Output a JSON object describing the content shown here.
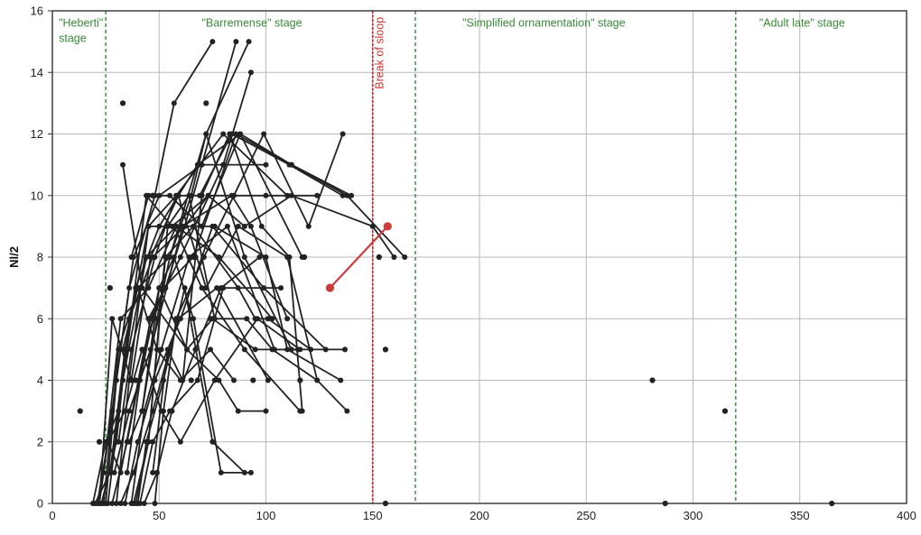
{
  "chart_data": {
    "type": "line",
    "ylabel": "Nl/2",
    "xlabel": "",
    "xlim": [
      0,
      400
    ],
    "ylim": [
      0,
      16
    ],
    "grid": true,
    "x_ticks": [
      0,
      50,
      100,
      150,
      200,
      250,
      300,
      350,
      400
    ],
    "y_ticks": [
      0,
      2,
      4,
      6,
      8,
      10,
      12,
      14,
      16
    ],
    "colors": {
      "series": "#222222",
      "highlight": "#d03a3a",
      "stage_line": "#3a8a3a",
      "break_line": "#c02020",
      "grid": "#b8b8b8",
      "axis": "#333333"
    },
    "stage_boundaries": [
      {
        "x": 25,
        "type": "stage"
      },
      {
        "x": 150,
        "type": "break"
      },
      {
        "x": 170,
        "type": "stage"
      },
      {
        "x": 320,
        "type": "stage"
      }
    ],
    "annotations": [
      {
        "text": "\"Heberti\"",
        "x": 3,
        "y": 15.6,
        "kind": "stage"
      },
      {
        "text": "stage",
        "x": 3,
        "y": 15.1,
        "kind": "stage"
      },
      {
        "text": "\"Barremense\" stage",
        "x": 70,
        "y": 15.6,
        "kind": "stage"
      },
      {
        "text": "\"Simplified ornamentation\" stage",
        "x": 192,
        "y": 15.6,
        "kind": "stage"
      },
      {
        "text": "\"Adult late\" stage",
        "x": 331,
        "y": 15.6,
        "kind": "stage"
      },
      {
        "text": "Break of sloop",
        "x": 155,
        "y": 15.8,
        "kind": "break"
      }
    ],
    "series": [
      {
        "points": [
          [
            33,
            11
          ],
          [
            42,
            7
          ],
          [
            63,
            5
          ],
          [
            75,
            6
          ],
          [
            95,
            5
          ],
          [
            115,
            5
          ]
        ]
      },
      {
        "points": [
          [
            22,
            0
          ],
          [
            28,
            3
          ],
          [
            36,
            7
          ],
          [
            48,
            10
          ],
          [
            57,
            13
          ],
          [
            75,
            15
          ]
        ]
      },
      {
        "points": [
          [
            25,
            0
          ],
          [
            30,
            4
          ],
          [
            38,
            8
          ],
          [
            50,
            10
          ],
          [
            70,
            11
          ],
          [
            100,
            11
          ]
        ]
      },
      {
        "points": [
          [
            20,
            0
          ],
          [
            27,
            1
          ],
          [
            34,
            5
          ],
          [
            45,
            9
          ],
          [
            58,
            10
          ],
          [
            80,
            12
          ],
          [
            110,
            10
          ]
        ]
      },
      {
        "points": [
          [
            23,
            0
          ],
          [
            30,
            2
          ],
          [
            36,
            6
          ],
          [
            47,
            8
          ],
          [
            62,
            9
          ],
          [
            86,
            15
          ]
        ]
      },
      {
        "points": [
          [
            24,
            0
          ],
          [
            31,
            5
          ],
          [
            40,
            7
          ],
          [
            55,
            8
          ],
          [
            72,
            12
          ],
          [
            92,
            15
          ]
        ]
      },
      {
        "points": [
          [
            26,
            0
          ],
          [
            33,
            4
          ],
          [
            44,
            8
          ],
          [
            58,
            9
          ],
          [
            78,
            8
          ],
          [
            103,
            6
          ]
        ]
      },
      {
        "points": [
          [
            28,
            0
          ],
          [
            35,
            2
          ],
          [
            46,
            6
          ],
          [
            60,
            8
          ],
          [
            80,
            11
          ],
          [
            93,
            14
          ]
        ]
      },
      {
        "points": [
          [
            27,
            1
          ],
          [
            35,
            5
          ],
          [
            44,
            10
          ],
          [
            56,
            9
          ],
          [
            73,
            10
          ],
          [
            100,
            10
          ],
          [
            124,
            10
          ]
        ]
      },
      {
        "points": [
          [
            21,
            0
          ],
          [
            26,
            2
          ],
          [
            32,
            1
          ],
          [
            43,
            5
          ],
          [
            52,
            7
          ],
          [
            66,
            8
          ],
          [
            86,
            12
          ],
          [
            112,
            11
          ],
          [
            140,
            10
          ]
        ]
      },
      {
        "points": [
          [
            19,
            0
          ],
          [
            25,
            2
          ],
          [
            31,
            3
          ],
          [
            39,
            7
          ],
          [
            50,
            9
          ],
          [
            68,
            11
          ],
          [
            88,
            12
          ],
          [
            117,
            8
          ]
        ]
      },
      {
        "points": [
          [
            30,
            0
          ],
          [
            36,
            4
          ],
          [
            45,
            9
          ],
          [
            57,
            9
          ],
          [
            70,
            7
          ],
          [
            90,
            5
          ],
          [
            116,
            3
          ]
        ]
      },
      {
        "points": [
          [
            34,
            0
          ],
          [
            40,
            2
          ],
          [
            48,
            4
          ],
          [
            60,
            6
          ],
          [
            75,
            9
          ],
          [
            99,
            7
          ],
          [
            128,
            5
          ]
        ]
      },
      {
        "points": [
          [
            37,
            0
          ],
          [
            43,
            3
          ],
          [
            51,
            5
          ],
          [
            64,
            8
          ],
          [
            82,
            9
          ],
          [
            104,
            5
          ],
          [
            137,
            5
          ]
        ]
      },
      {
        "points": [
          [
            32,
            0
          ],
          [
            38,
            1
          ],
          [
            47,
            3
          ],
          [
            59,
            6
          ],
          [
            77,
            7
          ],
          [
            101,
            4
          ]
        ]
      },
      {
        "points": [
          [
            29,
            1
          ],
          [
            36,
            3
          ],
          [
            46,
            5
          ],
          [
            61,
            9
          ],
          [
            84,
            10
          ],
          [
            93,
            9
          ],
          [
            110,
            6
          ]
        ]
      },
      {
        "points": [
          [
            39,
            0
          ],
          [
            45,
            2
          ],
          [
            53,
            8
          ],
          [
            66,
            9
          ],
          [
            87,
            7
          ],
          [
            95,
            6
          ],
          [
            101,
            6
          ],
          [
            121,
            5
          ]
        ]
      },
      {
        "points": [
          [
            35,
            1
          ],
          [
            41,
            4
          ],
          [
            50,
            7
          ],
          [
            63,
            5
          ],
          [
            78,
            4
          ],
          [
            87,
            3
          ],
          [
            100,
            3
          ]
        ]
      },
      {
        "points": [
          [
            41,
            0
          ],
          [
            47,
            2
          ],
          [
            55,
            3
          ],
          [
            68,
            4
          ],
          [
            80,
            7
          ],
          [
            107,
            7
          ]
        ]
      },
      {
        "points": [
          [
            48,
            0
          ],
          [
            52,
            3
          ],
          [
            58,
            6
          ],
          [
            71,
            8
          ],
          [
            85,
            10
          ],
          [
            99,
            12
          ],
          [
            120,
            9
          ],
          [
            136,
            12
          ]
        ]
      },
      {
        "points": [
          [
            40,
            0
          ],
          [
            44,
            2
          ],
          [
            52,
            4
          ],
          [
            62,
            7
          ],
          [
            75,
            2
          ],
          [
            90,
            1
          ]
        ]
      },
      {
        "points": [
          [
            43,
            0
          ],
          [
            49,
            1
          ],
          [
            56,
            3
          ],
          [
            67,
            5
          ],
          [
            79,
            7
          ],
          [
            97,
            8
          ]
        ]
      },
      {
        "points": [
          [
            31,
            2
          ],
          [
            37,
            5
          ],
          [
            48,
            8
          ],
          [
            58,
            10
          ],
          [
            69,
            10
          ],
          [
            84,
            12
          ],
          [
            111,
            11
          ],
          [
            136,
            10
          ]
        ]
      },
      {
        "points": [
          [
            38,
            0
          ],
          [
            45,
            2
          ],
          [
            54,
            9
          ],
          [
            64,
            10
          ],
          [
            76,
            6
          ],
          [
            91,
            6
          ],
          [
            103,
            5
          ],
          [
            124,
            4
          ],
          [
            138,
            3
          ]
        ]
      },
      {
        "points": [
          [
            36,
            2
          ],
          [
            42,
            3
          ],
          [
            50,
            7
          ],
          [
            57,
            8
          ],
          [
            66,
            6
          ],
          [
            79,
            1
          ],
          [
            93,
            1
          ]
        ]
      },
      {
        "points": [
          [
            24,
            1
          ],
          [
            32,
            6
          ],
          [
            45,
            7
          ],
          [
            58,
            9
          ],
          [
            76,
            9
          ],
          [
            100,
            8
          ],
          [
            110,
            5
          ],
          [
            135,
            4
          ]
        ]
      },
      {
        "points": [
          [
            22,
            0
          ],
          [
            28,
            6
          ],
          [
            37,
            4
          ],
          [
            46,
            8
          ],
          [
            59,
            10
          ],
          [
            72,
            7
          ],
          [
            87,
            9
          ],
          [
            110,
            8
          ],
          [
            124,
            4
          ]
        ]
      },
      {
        "points": [
          [
            47,
            1
          ],
          [
            54,
            5
          ],
          [
            61,
            4
          ],
          [
            70,
            10
          ],
          [
            83,
            12
          ],
          [
            98,
            9
          ],
          [
            111,
            8
          ],
          [
            117,
            3
          ]
        ]
      },
      {
        "points": [
          [
            26,
            2
          ],
          [
            34,
            3
          ],
          [
            42,
            5
          ],
          [
            51,
            3
          ],
          [
            60,
            2
          ],
          [
            76,
            4
          ],
          [
            96,
            6
          ],
          [
            116,
            5
          ]
        ]
      },
      {
        "points": [
          [
            42,
            3
          ],
          [
            49,
            6
          ],
          [
            55,
            8
          ],
          [
            65,
            10
          ],
          [
            72,
            12
          ],
          [
            90,
            8
          ],
          [
            112,
            5
          ]
        ]
      },
      {
        "points": [
          [
            33,
            5
          ],
          [
            40,
            7
          ],
          [
            49,
            5
          ],
          [
            60,
            4
          ],
          [
            74,
            5
          ],
          [
            85,
            4
          ]
        ]
      },
      {
        "points": [
          [
            45,
            6
          ],
          [
            53,
            7
          ],
          [
            62,
            9
          ],
          [
            73,
            10
          ],
          [
            90,
            9
          ],
          [
            112,
            10
          ],
          [
            150,
            9
          ],
          [
            160,
            8
          ]
        ]
      },
      {
        "points": [
          [
            37,
            8
          ],
          [
            45,
            10
          ],
          [
            55,
            10
          ],
          [
            70,
            9
          ],
          [
            88,
            12
          ],
          [
            112,
            11
          ],
          [
            138,
            10
          ],
          [
            165,
            8
          ]
        ]
      }
    ],
    "highlight_series": {
      "points": [
        [
          130,
          7
        ],
        [
          157,
          9
        ]
      ]
    },
    "scatter": [
      [
        13,
        3
      ],
      [
        22,
        2
      ],
      [
        33,
        13
      ],
      [
        72,
        13
      ],
      [
        153,
        8
      ],
      [
        118,
        8
      ],
      [
        156,
        5
      ],
      [
        281,
        4
      ],
      [
        315,
        3
      ],
      [
        156,
        0
      ],
      [
        287,
        0
      ],
      [
        365,
        0
      ],
      [
        65,
        4
      ],
      [
        94,
        4
      ],
      [
        116,
        4
      ],
      [
        27,
        7
      ],
      [
        39,
        4
      ],
      [
        47,
        10
      ],
      [
        67,
        8
      ],
      [
        74,
        6
      ]
    ]
  }
}
